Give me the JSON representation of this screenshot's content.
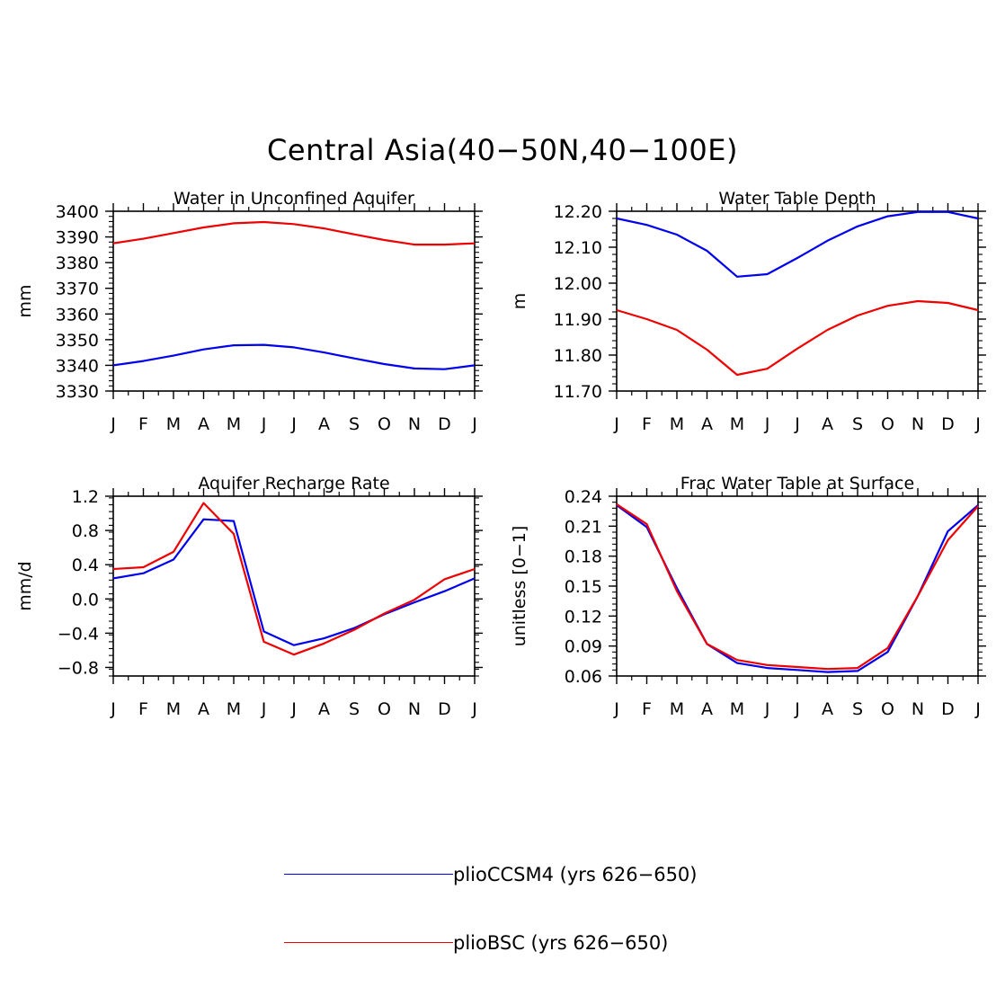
{
  "title": "Central Asia(40−50N,40−100E)",
  "colors": {
    "pliocCCSM4": "#0000ee",
    "plioBSC": "#ee0000",
    "axis": "#000000"
  },
  "legend": [
    {
      "label": "plioCCSM4 (yrs 626−650)",
      "color": "#0000ee"
    },
    {
      "label": "plioBSC (yrs 626−650)",
      "color": "#ee0000"
    }
  ],
  "chart_data": [
    {
      "type": "line",
      "title": "Water in Unconfined Aquifer",
      "xlabel": "",
      "ylabel": "mm",
      "categories": [
        "J",
        "F",
        "M",
        "A",
        "M",
        "J",
        "J",
        "A",
        "S",
        "O",
        "N",
        "D",
        "J"
      ],
      "ylim": [
        3330,
        3400
      ],
      "yticks": [
        "3330",
        "3340",
        "3350",
        "3360",
        "3370",
        "3380",
        "3390",
        "3400"
      ],
      "series": [
        {
          "name": "plioCCSM4 (yrs 626−650)",
          "color": "#0000ee",
          "values": [
            3340.0,
            3341.7,
            3343.8,
            3346.2,
            3347.8,
            3348.0,
            3347.0,
            3345.0,
            3342.7,
            3340.5,
            3338.8,
            3338.5,
            3340.0
          ]
        },
        {
          "name": "plioBSC (yrs 626−650)",
          "color": "#ee0000",
          "values": [
            3387.5,
            3389.3,
            3391.5,
            3393.7,
            3395.3,
            3395.8,
            3395.0,
            3393.3,
            3391.0,
            3388.8,
            3387.0,
            3387.0,
            3387.5
          ]
        }
      ]
    },
    {
      "type": "line",
      "title": "Water Table Depth",
      "xlabel": "",
      "ylabel": "m",
      "categories": [
        "J",
        "F",
        "M",
        "A",
        "M",
        "J",
        "J",
        "A",
        "S",
        "O",
        "N",
        "D",
        "J"
      ],
      "ylim": [
        11.7,
        12.2
      ],
      "yticks": [
        "11.70",
        "11.80",
        "11.90",
        "12.00",
        "12.10",
        "12.20"
      ],
      "series": [
        {
          "name": "plioCCSM4 (yrs 626−650)",
          "color": "#0000ee",
          "values": [
            12.18,
            12.162,
            12.135,
            12.09,
            12.018,
            12.025,
            12.07,
            12.118,
            12.158,
            12.186,
            12.198,
            12.198,
            12.18
          ]
        },
        {
          "name": "plioBSC (yrs 626−650)",
          "color": "#ee0000",
          "values": [
            11.925,
            11.9,
            11.87,
            11.815,
            11.745,
            11.762,
            11.818,
            11.87,
            11.91,
            11.937,
            11.95,
            11.945,
            11.925
          ]
        }
      ]
    },
    {
      "type": "line",
      "title": "Aquifer Recharge Rate",
      "xlabel": "",
      "ylabel": "mm/d",
      "categories": [
        "J",
        "F",
        "M",
        "A",
        "M",
        "J",
        "J",
        "A",
        "S",
        "O",
        "N",
        "D",
        "J"
      ],
      "ylim": [
        -0.9,
        1.2
      ],
      "yticks": [
        "-0.8",
        "-0.4",
        "0.0",
        "0.4",
        "0.8",
        "1.2"
      ],
      "series": [
        {
          "name": "plioCCSM4 (yrs 626−650)",
          "color": "#0000ee",
          "values": [
            0.24,
            0.3,
            0.46,
            0.93,
            0.91,
            -0.38,
            -0.54,
            -0.46,
            -0.34,
            -0.18,
            -0.04,
            0.09,
            0.24
          ]
        },
        {
          "name": "plioBSC (yrs 626−650)",
          "color": "#ee0000",
          "values": [
            0.35,
            0.37,
            0.55,
            1.12,
            0.76,
            -0.5,
            -0.65,
            -0.52,
            -0.36,
            -0.17,
            -0.01,
            0.23,
            0.35
          ]
        }
      ]
    },
    {
      "type": "line",
      "title": "Frac Water Table at Surface",
      "xlabel": "",
      "ylabel": "unitless [0−1]",
      "categories": [
        "J",
        "F",
        "M",
        "A",
        "M",
        "J",
        "J",
        "A",
        "S",
        "O",
        "N",
        "D",
        "J"
      ],
      "ylim": [
        0.06,
        0.24
      ],
      "yticks": [
        "0.06",
        "0.09",
        "0.12",
        "0.15",
        "0.18",
        "0.21",
        "0.24"
      ],
      "series": [
        {
          "name": "plioCCSM4 (yrs 626−650)",
          "color": "#0000ee",
          "values": [
            0.231,
            0.209,
            0.148,
            0.092,
            0.073,
            0.068,
            0.066,
            0.064,
            0.065,
            0.084,
            0.14,
            0.205,
            0.231
          ]
        },
        {
          "name": "plioBSC (yrs 626−650)",
          "color": "#ee0000",
          "values": [
            0.232,
            0.212,
            0.145,
            0.092,
            0.076,
            0.071,
            0.069,
            0.067,
            0.068,
            0.088,
            0.14,
            0.196,
            0.23
          ]
        }
      ]
    }
  ]
}
